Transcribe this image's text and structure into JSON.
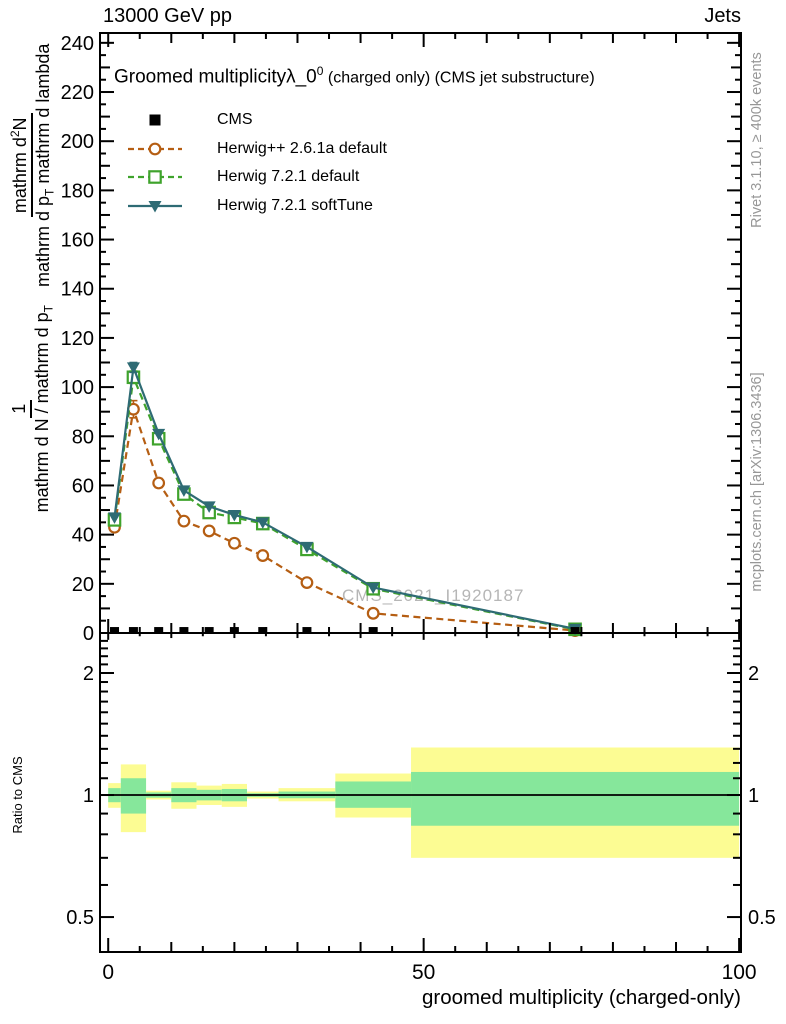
{
  "header": {
    "left": "13000 GeV pp",
    "right": "Jets"
  },
  "panel_title": {
    "main": "Groomed multiplicityλ_0",
    "sup": "0",
    "suffix": " (charged only) (CMS jet substructure)"
  },
  "legend": [
    {
      "label": "CMS",
      "marker": "square-filled",
      "line": "none",
      "color": "#000000"
    },
    {
      "label": "Herwig++ 2.6.1a default",
      "marker": "circle-open",
      "line": "dashed",
      "color": "#b55e13"
    },
    {
      "label": "Herwig 7.2.1 default",
      "marker": "square-open",
      "line": "dashed",
      "color": "#3fa32c"
    },
    {
      "label": "Herwig 7.2.1 softTune",
      "marker": "triangle-down",
      "line": "solid",
      "color": "#2e6b74"
    }
  ],
  "watermark": "CMS_2021_I1920187",
  "side_notes": {
    "top": "Rivet 3.1.10, ≥ 400k events",
    "bottom": "mcplots.cern.ch [arXiv:1306.3436]"
  },
  "ylabel": {
    "f1_num": "1",
    "f1_den": "mathrm d N / mathrm d p",
    "f1_den_sub": "T",
    "f2_num": "mathrm d",
    "f2_num_sup": "2",
    "f2_num_post": "N",
    "f2_den": "mathrm d p",
    "f2_den_sub": "T",
    "f2_den_post": " mathrm d lambda"
  },
  "ratio_ylabel": "Ratio to CMS",
  "xlabel": "groomed multiplicity (charged-only)",
  "chart_data": {
    "type": "line",
    "title": "Groomed multiplicityλ_0^0 (charged only) (CMS jet substructure)",
    "xlabel": "groomed multiplicity (charged-only)",
    "ylabel": "1/(mathrm dN/mathrm dp_T) · mathrm d2N/(mathrm dp_T mathrm dlambda)",
    "xlim": [
      -1.3,
      100.3
    ],
    "ylim": [
      0,
      244
    ],
    "x_major_ticks": [
      0,
      50,
      100
    ],
    "x_minor_step": 5,
    "y_major_step": 20,
    "y_minor_step": 5,
    "bin_edges": [
      0,
      2,
      6,
      10,
      14,
      18,
      22,
      27,
      36,
      48,
      100
    ],
    "x_centers": [
      1,
      4,
      8,
      12,
      16,
      20,
      24.5,
      31.5,
      42,
      74
    ],
    "series": [
      {
        "name": "CMS",
        "style": "data_squares",
        "color": "#000000",
        "values": [
          1.2,
          1.2,
          1.2,
          1.2,
          1.2,
          1.2,
          1.2,
          1.2,
          1.2,
          1.2
        ]
      },
      {
        "name": "Herwig++ 2.6.1a default",
        "style": "dashed_circle",
        "color": "#b55e13",
        "values": [
          43,
          91,
          61,
          45.5,
          41.5,
          36.5,
          31.5,
          20.5,
          8,
          1
        ],
        "errors": [
          1.5,
          3.5,
          1.8,
          1.2,
          1.0,
          1.0,
          1.0,
          0.8,
          0.6,
          0.4
        ]
      },
      {
        "name": "Herwig 7.2.1 default",
        "style": "dashed_square",
        "color": "#3fa32c",
        "values": [
          46,
          104,
          79,
          56.5,
          49,
          47,
          44.5,
          34,
          18,
          1.5
        ],
        "errors": [
          1.0,
          2.5,
          1.2,
          1.0,
          0.8,
          0.8,
          0.8,
          0.6,
          0.5,
          0.4
        ]
      },
      {
        "name": "Herwig 7.2.1 softTune",
        "style": "solid_triangle",
        "color": "#2e6b74",
        "values": [
          47,
          108,
          81,
          58,
          51.5,
          48,
          45,
          35,
          18.5,
          1.7
        ],
        "errors": [
          1.0,
          2.0,
          1.2,
          1.0,
          0.8,
          0.8,
          0.8,
          0.6,
          0.5,
          0.4
        ]
      }
    ],
    "ratio": {
      "label": "Ratio to CMS",
      "scale": "log",
      "ylim": [
        0.41,
        2.51
      ],
      "major_ticks": [
        0.5,
        1,
        2
      ],
      "minor_ticks": [
        0.5,
        0.6,
        0.7,
        0.8,
        0.9,
        1.0,
        1.1,
        1.2,
        1.3,
        1.4,
        1.5,
        1.6,
        1.7,
        1.8,
        1.9,
        2.0,
        2.1,
        2.2,
        2.3,
        2.4
      ],
      "reference_line": 1,
      "bands": [
        {
          "x0": 0,
          "x1": 2,
          "outer": [
            0.93,
            1.07
          ],
          "inner": [
            0.96,
            1.04
          ]
        },
        {
          "x0": 2,
          "x1": 6,
          "outer": [
            0.81,
            1.19
          ],
          "inner": [
            0.9,
            1.1
          ]
        },
        {
          "x0": 6,
          "x1": 10,
          "outer": [
            0.975,
            1.025
          ],
          "inner": [
            0.985,
            1.015
          ]
        },
        {
          "x0": 10,
          "x1": 14,
          "outer": [
            0.925,
            1.075
          ],
          "inner": [
            0.96,
            1.04
          ]
        },
        {
          "x0": 14,
          "x1": 18,
          "outer": [
            0.945,
            1.055
          ],
          "inner": [
            0.97,
            1.03
          ]
        },
        {
          "x0": 18,
          "x1": 22,
          "outer": [
            0.935,
            1.065
          ],
          "inner": [
            0.965,
            1.035
          ]
        },
        {
          "x0": 22,
          "x1": 27,
          "outer": [
            0.98,
            1.02
          ],
          "inner": [
            0.99,
            1.01
          ]
        },
        {
          "x0": 27,
          "x1": 36,
          "outer": [
            0.965,
            1.04
          ],
          "inner": [
            0.982,
            1.02
          ]
        },
        {
          "x0": 36,
          "x1": 48,
          "outer": [
            0.88,
            1.13
          ],
          "inner": [
            0.93,
            1.08
          ]
        },
        {
          "x0": 48,
          "x1": 100,
          "outer": [
            0.7,
            1.31
          ],
          "inner": [
            0.84,
            1.14
          ]
        }
      ]
    },
    "band_colors": {
      "outer": "#fcfc93",
      "inner": "#86e79b"
    },
    "legend_position": "top-left",
    "grid": false
  }
}
